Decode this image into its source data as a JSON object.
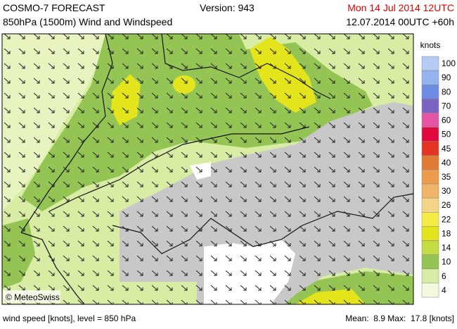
{
  "header": {
    "title": "COSMO-7 FORECAST",
    "version": "Version: 943",
    "valid_time": "Mon 14 Jul 2014 12UTC",
    "subtitle": "850hPa (1500m) Wind and Windspeed",
    "run": "12.07.2014 00UTC +60h"
  },
  "copyright": "© MeteoSwiss",
  "legend": {
    "title": "knots",
    "items": [
      {
        "label": "100",
        "color": "#b4ccf4"
      },
      {
        "label": "90",
        "color": "#94b4f0"
      },
      {
        "label": "80",
        "color": "#6c8ce4"
      },
      {
        "label": "70",
        "color": "#7c64c4"
      },
      {
        "label": "60",
        "color": "#e454a4"
      },
      {
        "label": "50",
        "color": "#e0083c"
      },
      {
        "label": "45",
        "color": "#e43424"
      },
      {
        "label": "40",
        "color": "#e07c34"
      },
      {
        "label": "35",
        "color": "#ec9c4c"
      },
      {
        "label": "30",
        "color": "#f0b468"
      },
      {
        "label": "26",
        "color": "#f4d488"
      },
      {
        "label": "22",
        "color": "#f4ec44"
      },
      {
        "label": "18",
        "color": "#e4e41c"
      },
      {
        "label": "14",
        "color": "#c4dc44"
      },
      {
        "label": "10",
        "color": "#94c454"
      },
      {
        "label": "6",
        "color": "#d8eca4"
      },
      {
        "label": "4",
        "color": "#f4f8dc"
      }
    ]
  },
  "footer": {
    "left": "wind speed [knots], level = 850 hPa",
    "right": "Mean:  8.9 Max:  17.8 [knots]"
  }
}
